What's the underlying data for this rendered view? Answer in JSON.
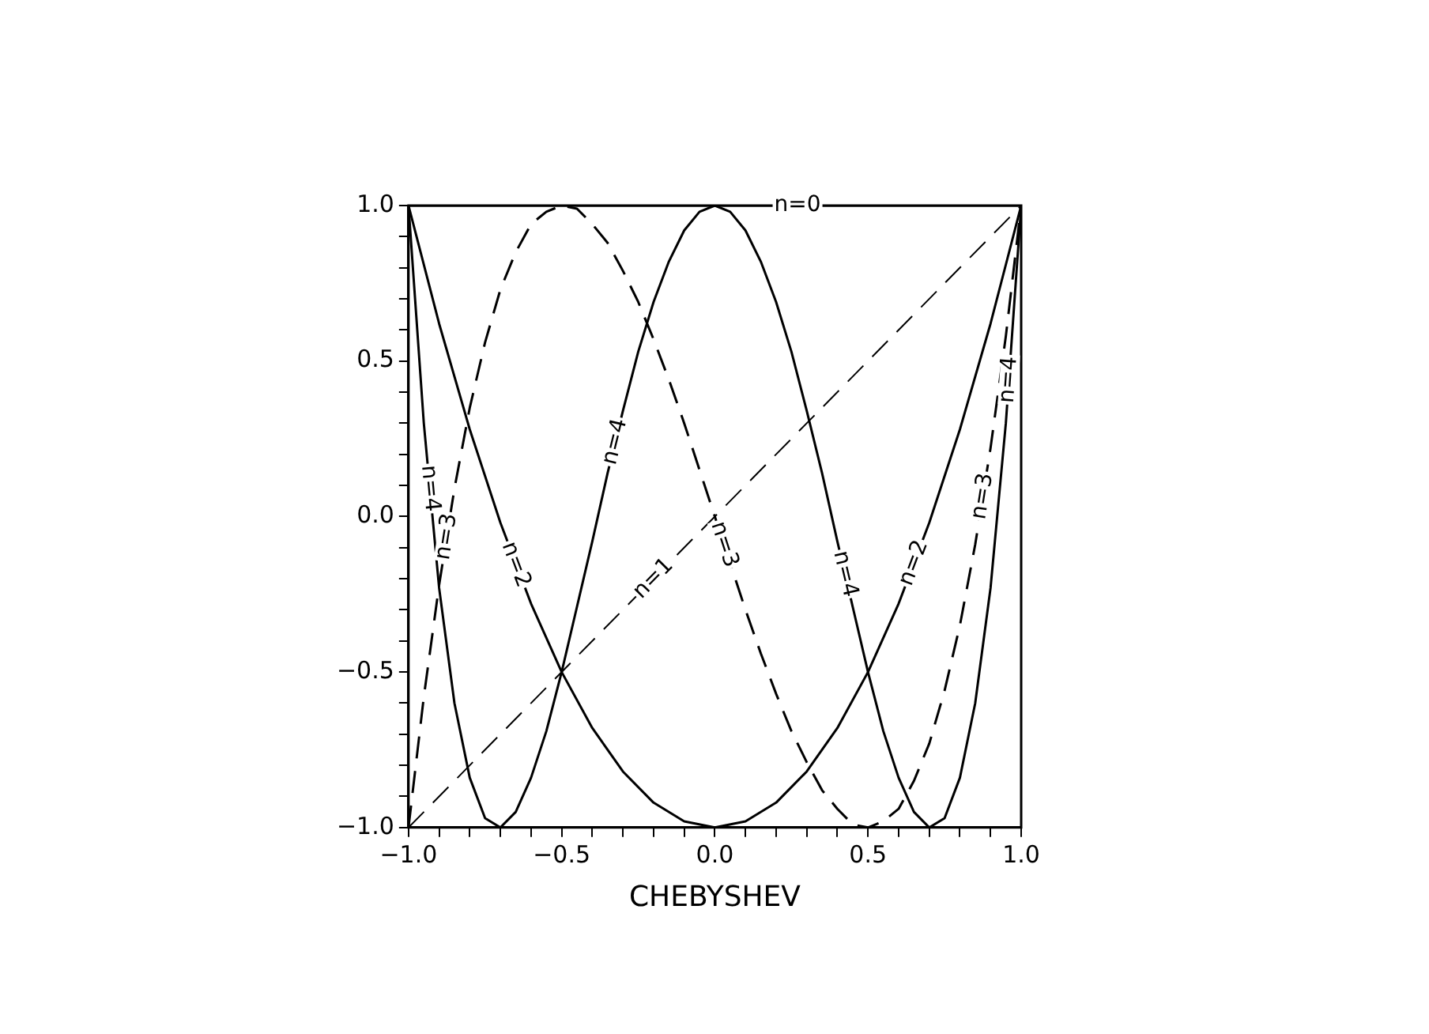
{
  "chart_data": {
    "type": "line",
    "xlabel": "CHEBYSHEV",
    "x": [
      -1,
      -0.95,
      -0.9,
      -0.85,
      -0.8,
      -0.75,
      -0.7,
      -0.65,
      -0.6,
      -0.55,
      -0.5,
      -0.45,
      -0.4,
      -0.35,
      -0.3,
      -0.25,
      -0.2,
      -0.15,
      -0.1,
      -0.05,
      0,
      0.05,
      0.1,
      0.15,
      0.2,
      0.25,
      0.3,
      0.35,
      0.4,
      0.45,
      0.5,
      0.55,
      0.6,
      0.65,
      0.7,
      0.75,
      0.8,
      0.85,
      0.9,
      0.95,
      1
    ],
    "series": [
      {
        "color": "#000000",
        "line_style": "solid",
        "x": [
          -1,
          1
        ],
        "values": [
          1,
          1
        ]
      },
      {
        "color": "#000000",
        "line_style": "dashed",
        "x": [
          -1,
          1
        ],
        "values": [
          -1,
          1
        ]
      },
      {
        "color": "#000000",
        "line_style": "solid",
        "x": [
          -1,
          -0.9,
          -0.8,
          -0.7,
          -0.6,
          -0.5,
          -0.4,
          -0.3,
          -0.2,
          -0.1,
          0,
          0.1,
          0.2,
          0.3,
          0.4,
          0.5,
          0.6,
          0.7,
          0.8,
          0.9,
          1
        ],
        "values": [
          1,
          0.62,
          0.28,
          -0.02,
          -0.28,
          -0.5,
          -0.68,
          -0.82,
          -0.92,
          -0.98,
          -1,
          -0.98,
          -0.92,
          -0.82,
          -0.68,
          -0.5,
          -0.28,
          -0.02,
          0.28,
          0.62,
          1
        ]
      },
      {
        "color": "#000000",
        "line_style": "dashed",
        "x": [
          -1,
          -0.95,
          -0.9,
          -0.85,
          -0.8,
          -0.75,
          -0.7,
          -0.65,
          -0.6,
          -0.55,
          -0.5,
          -0.45,
          -0.4,
          -0.35,
          -0.3,
          -0.25,
          -0.2,
          -0.15,
          -0.1,
          0.1,
          0.15,
          0.2,
          0.25,
          0.3,
          0.35,
          0.4,
          0.45,
          0.5,
          0.55,
          0.6,
          0.65,
          0.7,
          0.75,
          0.8,
          0.85,
          0.9,
          0.95,
          1
        ],
        "values": [
          -1,
          -0.58,
          -0.22,
          0.09,
          0.35,
          0.56,
          0.73,
          0.85,
          0.94,
          0.98,
          1,
          0.99,
          0.94,
          0.88,
          0.79,
          0.69,
          0.57,
          0.44,
          0.3,
          -0.3,
          -0.44,
          -0.57,
          -0.69,
          -0.79,
          -0.88,
          -0.94,
          -0.99,
          -1,
          -0.98,
          -0.94,
          -0.85,
          -0.73,
          -0.56,
          -0.35,
          -0.09,
          0.22,
          0.58,
          1
        ]
      },
      {
        "color": "#000000",
        "line_style": "solid",
        "values": [
          1,
          0.3,
          -0.23,
          -0.6,
          -0.84,
          -0.97,
          -1,
          -0.95,
          -0.84,
          -0.69,
          -0.5,
          -0.29,
          -0.08,
          0.14,
          0.34,
          0.53,
          0.69,
          0.82,
          0.92,
          0.98,
          1,
          0.98,
          0.92,
          0.82,
          0.69,
          0.53,
          0.34,
          0.14,
          -0.08,
          -0.29,
          -0.5,
          -0.69,
          -0.84,
          -0.95,
          -1,
          -0.97,
          -0.84,
          -0.6,
          -0.23,
          0.3,
          1
        ]
      }
    ],
    "xlim": [
      -1,
      1
    ],
    "ylim": [
      -1,
      1
    ],
    "xticks": [
      {
        "value": -1,
        "label": "−1.0"
      },
      {
        "value": -0.9,
        "label": null
      },
      {
        "value": -0.8,
        "label": null
      },
      {
        "value": -0.7,
        "label": null
      },
      {
        "value": -0.6,
        "label": null
      },
      {
        "value": -0.5,
        "label": "−0.5"
      },
      {
        "value": -0.4,
        "label": null
      },
      {
        "value": -0.3,
        "label": null
      },
      {
        "value": -0.2,
        "label": null
      },
      {
        "value": -0.1,
        "label": null
      },
      {
        "value": 0,
        "label": "0.0"
      },
      {
        "value": 0.1,
        "label": null
      },
      {
        "value": 0.2,
        "label": null
      },
      {
        "value": 0.3,
        "label": null
      },
      {
        "value": 0.4,
        "label": null
      },
      {
        "value": 0.5,
        "label": "0.5"
      },
      {
        "value": 0.6,
        "label": null
      },
      {
        "value": 0.7,
        "label": null
      },
      {
        "value": 0.8,
        "label": null
      },
      {
        "value": 0.9,
        "label": null
      },
      {
        "value": 1,
        "label": "1.0"
      }
    ],
    "yticks": [
      {
        "value": -1,
        "label": "−1.0"
      },
      {
        "value": -0.9,
        "label": null
      },
      {
        "value": -0.8,
        "label": null
      },
      {
        "value": -0.7,
        "label": null
      },
      {
        "value": -0.6,
        "label": null
      },
      {
        "value": -0.5,
        "label": "−0.5"
      },
      {
        "value": -0.4,
        "label": null
      },
      {
        "value": -0.3,
        "label": null
      },
      {
        "value": -0.2,
        "label": null
      },
      {
        "value": -0.1,
        "label": null
      },
      {
        "value": 0,
        "label": "0.0"
      },
      {
        "value": 0.1,
        "label": null
      },
      {
        "value": 0.2,
        "label": null
      },
      {
        "value": 0.3,
        "label": null
      },
      {
        "value": 0.4,
        "label": null
      },
      {
        "value": 0.5,
        "label": "0.5"
      },
      {
        "value": 0.6,
        "label": null
      },
      {
        "value": 0.7,
        "label": null
      },
      {
        "value": 0.8,
        "label": null
      },
      {
        "value": 0.9,
        "label": null
      },
      {
        "value": 1,
        "label": "1.0"
      }
    ],
    "grid": false,
    "legend": false,
    "marker": "none",
    "annotations": [
      {
        "text": "n=0",
        "x": 0.27,
        "y": 1
      },
      {
        "text": "n=1",
        "x": -0.2,
        "y": -0.2
      },
      {
        "text": "n=2",
        "x": -0.65,
        "y": -0.155
      },
      {
        "text": "n=2",
        "x": 0.65,
        "y": -0.15
      },
      {
        "text": "n=3",
        "x": -0.875,
        "y": -0.065
      },
      {
        "text": "n=3",
        "x": 0.03,
        "y": -0.09
      },
      {
        "text": "n=3",
        "x": 0.875,
        "y": 0.065
      },
      {
        "text": "n=4",
        "x": -0.93,
        "y": 0.09
      },
      {
        "text": "n=4",
        "x": -0.325,
        "y": 0.24
      },
      {
        "text": "n=4",
        "x": 0.425,
        "y": -0.185
      },
      {
        "text": "n=4",
        "x": 0.96,
        "y": 0.44
      }
    ]
  }
}
